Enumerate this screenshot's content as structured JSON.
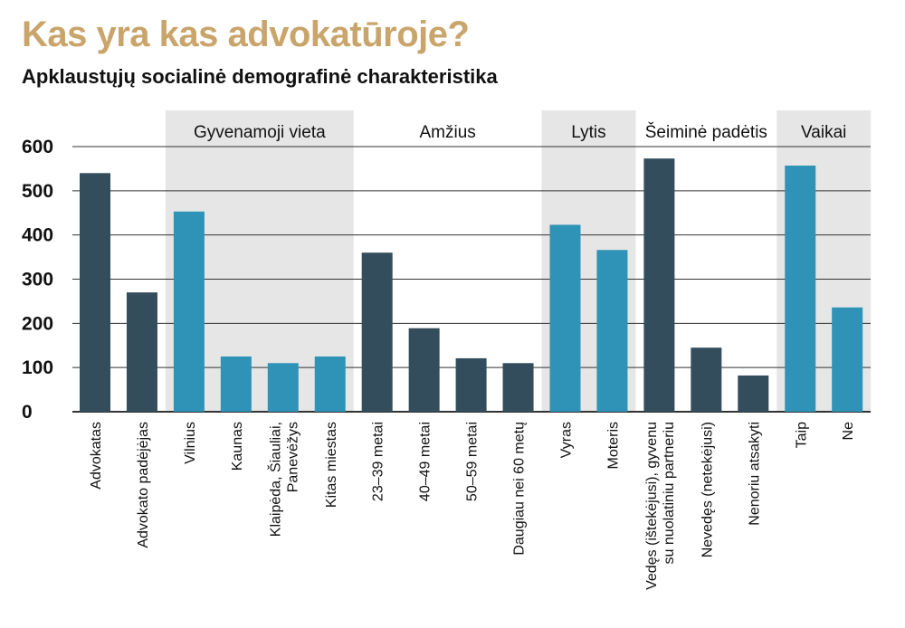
{
  "header": {
    "title": "Kas yra kas advokatūroje?",
    "subtitle": "Apklaustųjų socialinė demografinė charakteristika"
  },
  "colors": {
    "title": "#c9a56b",
    "dark_bar": "#334d5c",
    "light_bar": "#2e93b6",
    "group_band": "#e6e6e6",
    "grid": "#333333"
  },
  "chart_data": {
    "type": "bar",
    "ylim": [
      0,
      600
    ],
    "yticks": [
      0,
      100,
      200,
      300,
      400,
      500,
      600
    ],
    "grid": true,
    "groups": [
      {
        "label": "",
        "shaded": false,
        "start": 0,
        "end": 1
      },
      {
        "label": "Gyvenamoji vieta",
        "shaded": true,
        "start": 2,
        "end": 5
      },
      {
        "label": "Amžius",
        "shaded": false,
        "start": 6,
        "end": 9
      },
      {
        "label": "Lytis",
        "shaded": true,
        "start": 10,
        "end": 11
      },
      {
        "label": "Šeiminė padėtis",
        "shaded": false,
        "start": 12,
        "end": 14
      },
      {
        "label": "Vaikai",
        "shaded": true,
        "start": 15,
        "end": 16
      }
    ],
    "categories": [
      [
        "Advokatas"
      ],
      [
        "Advokato padėjėjas"
      ],
      [
        "Vilnius"
      ],
      [
        "Kaunas"
      ],
      [
        "Klaipėda, Šiauliai,",
        "Panevėžys"
      ],
      [
        "Kitas miestas"
      ],
      [
        "23–39 metai"
      ],
      [
        "40–49 metai"
      ],
      [
        "50–59 metai"
      ],
      [
        "Daugiau nei 60 metų"
      ],
      [
        "Vyras"
      ],
      [
        "Moteris"
      ],
      [
        "Vedęs (ištekėjusi), gyvenu",
        "su nuolatiniu partneriu"
      ],
      [
        "Nevedęs (netekėjusi)"
      ],
      [
        "Nenoriu atsakyti"
      ],
      [
        "Taip"
      ],
      [
        "Ne"
      ]
    ],
    "values": [
      540,
      270,
      453,
      125,
      110,
      125,
      360,
      189,
      121,
      110,
      423,
      366,
      573,
      145,
      82,
      557,
      236
    ],
    "bar_color": [
      "dark",
      "dark",
      "light",
      "light",
      "light",
      "light",
      "dark",
      "dark",
      "dark",
      "dark",
      "light",
      "light",
      "dark",
      "dark",
      "dark",
      "light",
      "light"
    ]
  }
}
